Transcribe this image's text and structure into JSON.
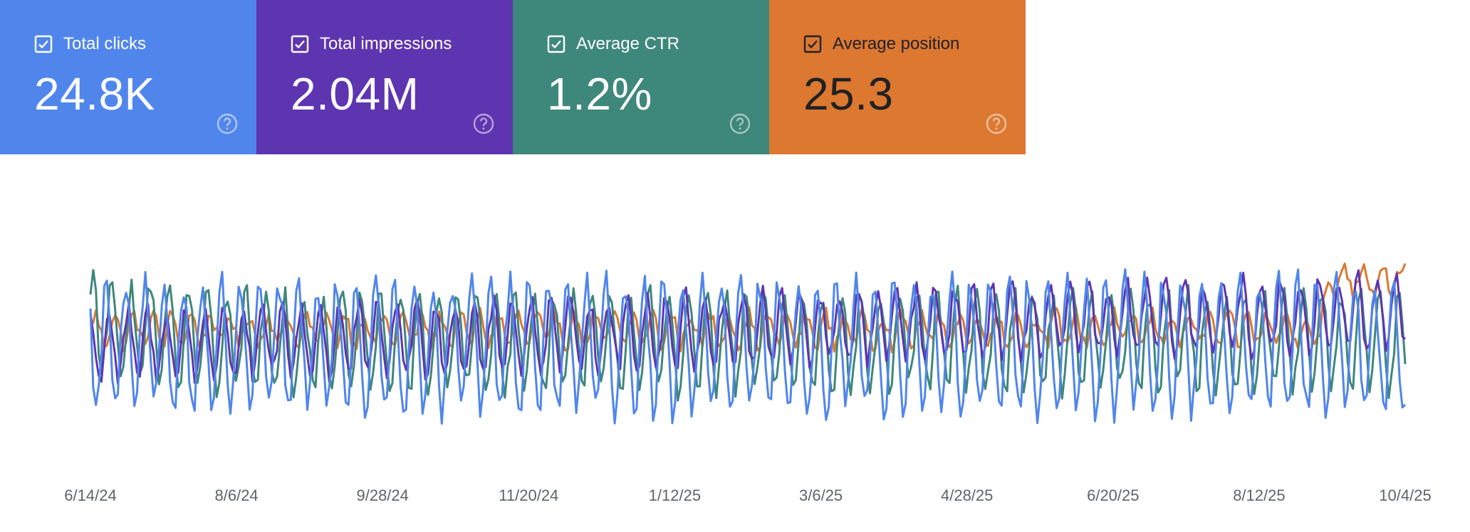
{
  "cards": [
    {
      "key": "clicks",
      "label": "Total clicks",
      "value": "24.8K",
      "color": "#5086ec",
      "text_color": "#ffffff",
      "checked": true
    },
    {
      "key": "impressions",
      "label": "Total impressions",
      "value": "2.04M",
      "color": "#5e35b1",
      "text_color": "#ffffff",
      "checked": true
    },
    {
      "key": "ctr",
      "label": "Average CTR",
      "value": "1.2%",
      "color": "#3e877b",
      "text_color": "#ffffff",
      "checked": true
    },
    {
      "key": "position",
      "label": "Average position",
      "value": "25.3",
      "color": "#dd7831",
      "text_color": "#202124",
      "checked": true
    }
  ],
  "icons": {
    "checkbox": "checkbox-checked-icon",
    "help": "help-circle-icon"
  },
  "chart_data": {
    "type": "line",
    "title": "",
    "xlabel": "",
    "ylabel": "",
    "x_tick_labels": [
      "6/14/24",
      "8/6/24",
      "9/28/24",
      "11/20/24",
      "1/12/25",
      "3/6/25",
      "4/28/25",
      "6/20/25",
      "8/12/25",
      "10/4/25"
    ],
    "x_start": "6/14/24",
    "x_end": "10/4/25",
    "num_points": 480,
    "ylim": [
      0,
      100
    ],
    "grid": false,
    "series": [
      {
        "name": "Average position",
        "color": "#dd7831",
        "base": 58,
        "amp": 7,
        "noise": 4,
        "late_step_start": 0.935,
        "late_step": 24
      },
      {
        "name": "Average CTR",
        "color": "#3e877b",
        "base": 52,
        "amp": 22,
        "noise": 6,
        "early_boost": 10
      },
      {
        "name": "Total impressions",
        "color": "#5e35b1",
        "base": 50,
        "amp": 16,
        "noise": 5,
        "trend": 16
      },
      {
        "name": "Total clicks",
        "color": "#5086ec",
        "base": 50,
        "amp": 30,
        "noise": 7
      }
    ]
  }
}
